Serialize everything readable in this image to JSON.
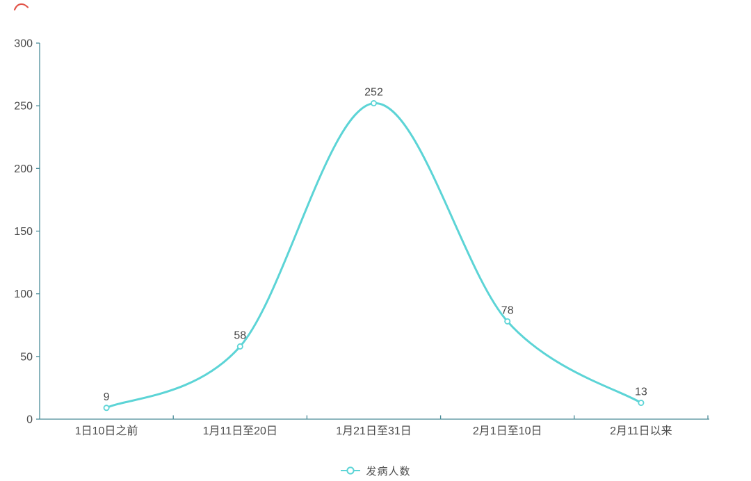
{
  "chart_data": {
    "type": "line",
    "smooth": true,
    "title": "",
    "xlabel": "",
    "ylabel": "",
    "categories": [
      "1日10日之前",
      "1月11日至20日",
      "1月21日至31日",
      "2月1日至10日",
      "2月11日以来"
    ],
    "series": [
      {
        "name": "发病人数",
        "values": [
          9,
          58,
          252,
          78,
          13
        ]
      }
    ],
    "ylim": [
      0,
      300
    ],
    "ytick_interval": 50,
    "yticks": [
      0,
      50,
      100,
      150,
      200,
      250,
      300
    ],
    "grid": false,
    "legend_position": "bottom-center",
    "value_labels_shown": true,
    "colors": {
      "line": "#5CD4D6",
      "marker_fill": "#ffffff",
      "axis": "#4A8B98",
      "axis_label": "#4A4A4A",
      "value_label": "#464646",
      "legend_text": "#4E4E4E",
      "background": "#ffffff",
      "corner_mark": "#E04B3F"
    }
  },
  "icons": {
    "legend_line_icon": "line-with-hollow-circle",
    "red_scribble_icon": "small-red-arc"
  }
}
